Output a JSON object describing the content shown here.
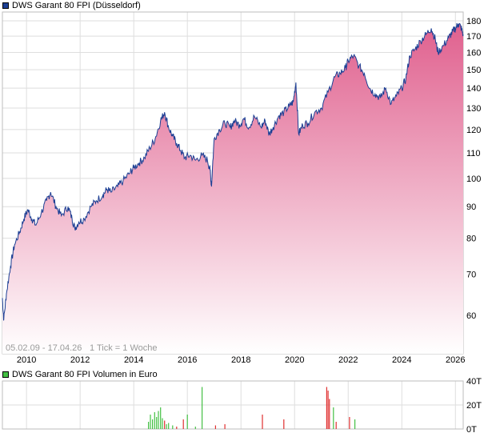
{
  "legend": {
    "price_label": "DWS Garant 80 FPI (Düsseldorf)",
    "price_color": "#1c3f94",
    "volume_label": "DWS Garant 80 FPI Volumen in Euro",
    "volume_color": "#44c044"
  },
  "footer": {
    "range_text": "05.02.09 - 17.04.26",
    "tick_text": "1 Tick = 1 Woche"
  },
  "colors": {
    "line": "#1c3f94",
    "area_top": "#e0608e",
    "area_bottom": "#ffffff",
    "grid": "#dedede",
    "vol_up": "#44c044",
    "vol_down": "#e03030"
  },
  "chart_data": [
    {
      "type": "area",
      "title": "DWS Garant 80 FPI (Düsseldorf)",
      "scale": "log",
      "ylim": [
        52,
        186
      ],
      "y_ticks": [
        60,
        70,
        80,
        90,
        100,
        110,
        120,
        130,
        140,
        150,
        160,
        170,
        180
      ],
      "x_ticks": [
        2010,
        2012,
        2014,
        2016,
        2018,
        2020,
        2022,
        2024,
        2026
      ],
      "xlim": [
        2009.1,
        2026.29
      ],
      "grid": true,
      "series": [
        {
          "name": "DWS Garant 80 FPI",
          "x": [
            2009.1,
            2009.15,
            2009.25,
            2009.4,
            2009.55,
            2009.75,
            2009.9,
            2010.05,
            2010.2,
            2010.35,
            2010.55,
            2010.75,
            2010.9,
            2011.1,
            2011.3,
            2011.55,
            2011.7,
            2011.8,
            2011.95,
            2012.15,
            2012.4,
            2012.6,
            2012.85,
            2013.0,
            2013.15,
            2013.4,
            2013.6,
            2013.85,
            2014.0,
            2014.2,
            2014.4,
            2014.6,
            2014.8,
            2015.0,
            2015.15,
            2015.3,
            2015.45,
            2015.6,
            2015.75,
            2015.9,
            2016.1,
            2016.3,
            2016.55,
            2016.75,
            2016.85,
            2016.9,
            2017.0,
            2017.2,
            2017.4,
            2017.6,
            2017.75,
            2017.95,
            2018.1,
            2018.3,
            2018.5,
            2018.75,
            2018.9,
            2019.05,
            2019.2,
            2019.4,
            2019.6,
            2019.8,
            2019.95,
            2020.05,
            2020.15,
            2020.3,
            2020.5,
            2020.75,
            2021.0,
            2021.25,
            2021.5,
            2021.7,
            2021.9,
            2022.0,
            2022.2,
            2022.4,
            2022.6,
            2022.8,
            2023.0,
            2023.2,
            2023.4,
            2023.6,
            2023.8,
            2024.0,
            2024.15,
            2024.3,
            2024.5,
            2024.7,
            2024.9,
            2025.1,
            2025.25,
            2025.35,
            2025.55,
            2025.75,
            2025.9,
            2026.0,
            2026.1,
            2026.2,
            2026.29
          ],
          "values": [
            64,
            59,
            65,
            72,
            78,
            82,
            86,
            89,
            86,
            84,
            88,
            92,
            95,
            90,
            87,
            90,
            86,
            83,
            85,
            86,
            90,
            92,
            94,
            96,
            95,
            97,
            99,
            102,
            104,
            106,
            108,
            112,
            116,
            124,
            128,
            121,
            117,
            114,
            111,
            108,
            109,
            107,
            109,
            107,
            103,
            97,
            116,
            120,
            123,
            121,
            124,
            122,
            125,
            121,
            126,
            121,
            124,
            118,
            121,
            126,
            128,
            131,
            133,
            143,
            118,
            122,
            123,
            128,
            130,
            138,
            146,
            148,
            151,
            155,
            158,
            152,
            148,
            140,
            137,
            135,
            140,
            132,
            136,
            140,
            145,
            158,
            162,
            167,
            171,
            175,
            168,
            160,
            164,
            169,
            173,
            175,
            178,
            176,
            171
          ]
        }
      ]
    },
    {
      "type": "bar",
      "title": "DWS Garant 80 FPI Volumen in Euro",
      "ylim": [
        0,
        40
      ],
      "y_ticks": [
        0,
        20,
        40
      ],
      "y_tick_labels": [
        "0T",
        "20T",
        "40T"
      ],
      "x_ticks": [
        2010,
        2012,
        2014,
        2016,
        2018,
        2020,
        2022,
        2024,
        2026
      ],
      "xlim": [
        2009.1,
        2026.29
      ],
      "series": [
        {
          "name": "Volumen",
          "x": [
            2014.55,
            2014.62,
            2014.7,
            2014.78,
            2014.85,
            2014.92,
            2015.0,
            2015.07,
            2015.15,
            2015.22,
            2015.3,
            2015.45,
            2015.6,
            2015.85,
            2016.0,
            2016.3,
            2016.55,
            2017.05,
            2017.4,
            2018.8,
            2019.6,
            2021.2,
            2021.25,
            2021.3,
            2021.45,
            2021.55,
            2022.05,
            2022.25
          ],
          "values": [
            6,
            12,
            8,
            14,
            10,
            15,
            18,
            9,
            7,
            4,
            5,
            3,
            2,
            8,
            12,
            2,
            35,
            3,
            4,
            12,
            8,
            35,
            32,
            25,
            18,
            6,
            10,
            8
          ],
          "direction": [
            "up",
            "up",
            "up",
            "up",
            "up",
            "up",
            "up",
            "up",
            "down",
            "up",
            "up",
            "up",
            "down",
            "down",
            "up",
            "up",
            "up",
            "down",
            "down",
            "down",
            "down",
            "down",
            "down",
            "down",
            "up",
            "down",
            "down",
            "up"
          ]
        }
      ]
    }
  ]
}
